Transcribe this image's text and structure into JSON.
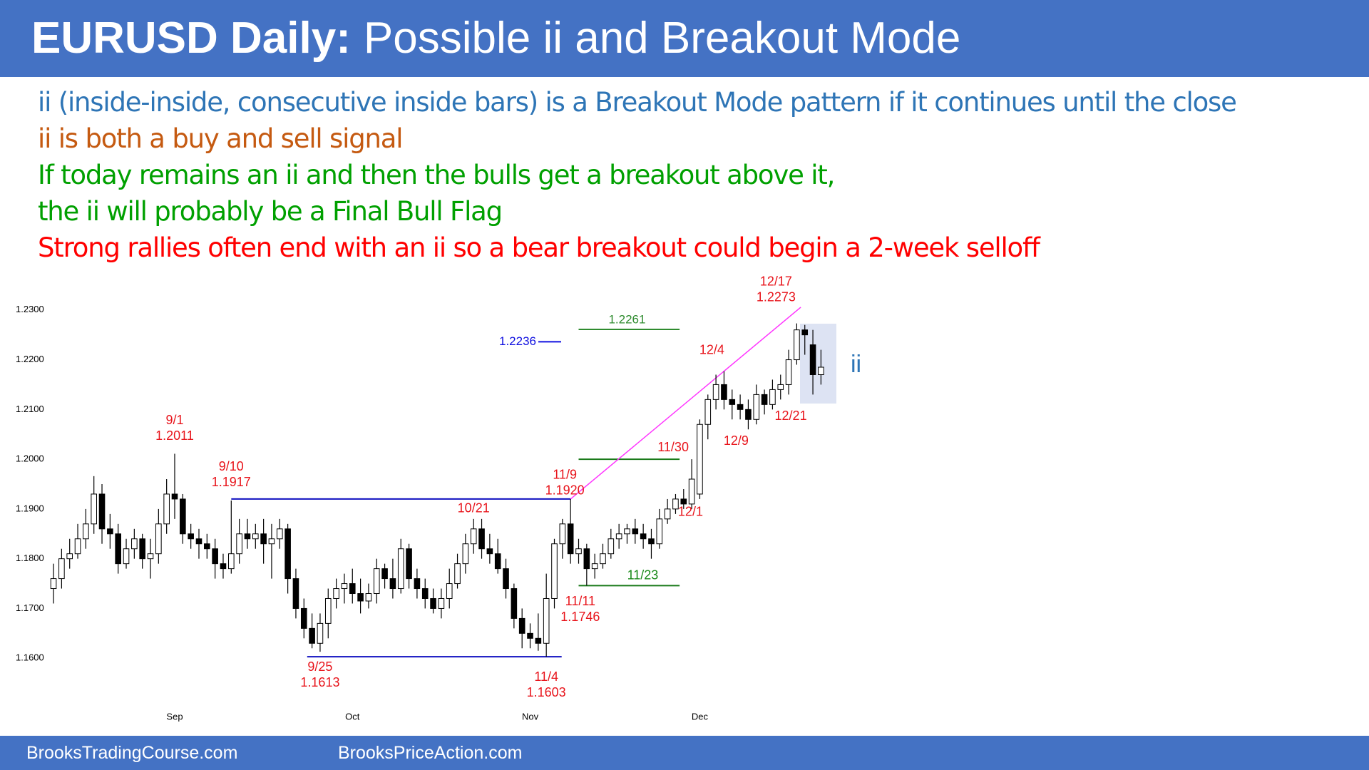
{
  "header": {
    "title_bold": "EURUSD Daily:",
    "title_rest": "Possible ii and Breakout Mode"
  },
  "notes": [
    {
      "text": "ii (inside-inside, consecutive inside bars) is a Breakout Mode pattern if it continues until the close",
      "color": "#2e75b6"
    },
    {
      "text": "ii is both a buy and sell signal",
      "color": "#c55a11"
    },
    {
      "text": "If today remains an ii and then the bulls get a breakout above it,",
      "color": "#00a000"
    },
    {
      "text": "the ii will probably be a Final Bull Flag",
      "color": "#00a000"
    },
    {
      "text": "Strong rallies often end with an ii so a bear breakout could begin a 2-week selloff",
      "color": "#ff0000"
    }
  ],
  "footer": {
    "left": "BrooksTradingCourse.com",
    "right": "BrooksPriceAction.com"
  },
  "chart_data": {
    "type": "candlestick",
    "categories": [
      null,
      null,
      null,
      null,
      null,
      null,
      null,
      null,
      null,
      null,
      null,
      null,
      null,
      null,
      null,
      "Sep",
      null,
      null,
      null,
      null,
      null,
      null,
      null,
      null,
      null,
      null,
      null,
      null,
      null,
      null,
      null,
      null,
      null,
      null,
      null,
      null,
      null,
      "Oct",
      null,
      null,
      null,
      null,
      null,
      null,
      null,
      null,
      null,
      null,
      null,
      null,
      null,
      null,
      null,
      null,
      null,
      null,
      null,
      null,
      null,
      "Nov",
      null,
      null,
      null,
      null,
      null,
      null,
      null,
      null,
      null,
      null,
      null,
      null,
      null,
      null,
      null,
      null,
      null,
      null,
      null,
      null,
      "Dec",
      null,
      null,
      null,
      null,
      null,
      null,
      null,
      null,
      null,
      null,
      null,
      null,
      null,
      null,
      null
    ],
    "open": [
      1.174,
      1.176,
      1.18,
      1.181,
      1.184,
      1.187,
      1.193,
      1.186,
      1.185,
      1.179,
      1.182,
      1.184,
      1.18,
      1.181,
      1.187,
      1.193,
      1.192,
      1.185,
      1.184,
      1.183,
      1.182,
      1.179,
      1.178,
      1.181,
      1.185,
      1.184,
      1.185,
      1.183,
      1.184,
      1.186,
      1.176,
      1.17,
      1.166,
      1.163,
      1.167,
      1.172,
      1.174,
      1.175,
      1.173,
      1.1715,
      1.173,
      1.178,
      1.176,
      1.174,
      1.182,
      1.176,
      1.174,
      1.172,
      1.17,
      1.172,
      1.175,
      1.179,
      1.183,
      1.186,
      1.182,
      1.181,
      1.178,
      1.174,
      1.168,
      1.165,
      1.164,
      1.163,
      1.172,
      1.183,
      1.187,
      1.181,
      1.182,
      1.178,
      1.179,
      1.181,
      1.184,
      1.185,
      1.186,
      1.185,
      1.184,
      1.183,
      1.188,
      1.19,
      1.192,
      1.191,
      1.193,
      1.207,
      1.212,
      1.215,
      1.212,
      1.211,
      1.21,
      1.208,
      1.213,
      1.211,
      1.214,
      1.215,
      1.22,
      1.226,
      1.223,
      1.217
    ],
    "high": [
      1.179,
      1.182,
      1.184,
      1.187,
      1.19,
      1.1966,
      1.195,
      1.189,
      1.187,
      1.184,
      1.186,
      1.185,
      1.184,
      1.19,
      1.196,
      1.2011,
      1.193,
      1.187,
      1.186,
      1.185,
      1.184,
      1.181,
      1.1917,
      1.188,
      1.188,
      1.187,
      1.188,
      1.187,
      1.188,
      1.187,
      1.178,
      1.172,
      1.169,
      1.169,
      1.174,
      1.176,
      1.177,
      1.178,
      1.176,
      1.175,
      1.18,
      1.179,
      1.18,
      1.184,
      1.183,
      1.178,
      1.176,
      1.174,
      1.174,
      1.178,
      1.181,
      1.185,
      1.188,
      1.188,
      1.185,
      1.184,
      1.18,
      1.175,
      1.17,
      1.167,
      1.169,
      1.177,
      1.184,
      1.188,
      1.192,
      1.184,
      1.183,
      1.181,
      1.183,
      1.186,
      1.187,
      1.187,
      1.188,
      1.187,
      1.186,
      1.19,
      1.192,
      1.193,
      1.194,
      1.2,
      1.208,
      1.213,
      1.217,
      1.2177,
      1.214,
      1.213,
      1.212,
      1.215,
      1.214,
      1.216,
      1.217,
      1.222,
      1.2273,
      1.227,
      1.226,
      1.222
    ],
    "low": [
      1.171,
      1.174,
      1.178,
      1.18,
      1.182,
      1.185,
      1.183,
      1.182,
      1.177,
      1.178,
      1.18,
      1.178,
      1.176,
      1.179,
      1.185,
      1.188,
      1.183,
      1.182,
      1.18,
      1.18,
      1.176,
      1.176,
      1.177,
      1.179,
      1.182,
      1.182,
      1.179,
      1.176,
      1.182,
      1.173,
      1.168,
      1.164,
      1.162,
      1.1613,
      1.164,
      1.17,
      1.171,
      1.171,
      1.169,
      1.17,
      1.171,
      1.174,
      1.172,
      1.173,
      1.174,
      1.172,
      1.17,
      1.169,
      1.168,
      1.17,
      1.174,
      1.177,
      1.181,
      1.18,
      1.179,
      1.177,
      1.172,
      1.166,
      1.162,
      1.162,
      1.1615,
      1.1603,
      1.17,
      1.18,
      1.179,
      1.179,
      1.1746,
      1.176,
      1.178,
      1.18,
      1.182,
      1.183,
      1.183,
      1.182,
      1.18,
      1.182,
      1.187,
      1.189,
      1.19,
      1.19,
      1.192,
      1.204,
      1.21,
      1.21,
      1.208,
      1.208,
      1.206,
      1.207,
      1.209,
      1.21,
      1.212,
      1.213,
      1.219,
      1.221,
      1.213,
      1.215
    ],
    "close": [
      1.176,
      1.18,
      1.181,
      1.184,
      1.187,
      1.193,
      1.186,
      1.185,
      1.179,
      1.182,
      1.184,
      1.18,
      1.181,
      1.187,
      1.193,
      1.192,
      1.185,
      1.184,
      1.183,
      1.182,
      1.179,
      1.178,
      1.181,
      1.185,
      1.184,
      1.185,
      1.183,
      1.184,
      1.186,
      1.176,
      1.17,
      1.166,
      1.163,
      1.167,
      1.172,
      1.174,
      1.175,
      1.173,
      1.1715,
      1.173,
      1.178,
      1.176,
      1.174,
      1.182,
      1.176,
      1.174,
      1.172,
      1.17,
      1.172,
      1.175,
      1.179,
      1.183,
      1.186,
      1.182,
      1.181,
      1.178,
      1.174,
      1.168,
      1.165,
      1.164,
      1.163,
      1.172,
      1.183,
      1.187,
      1.181,
      1.182,
      1.178,
      1.179,
      1.181,
      1.184,
      1.185,
      1.186,
      1.185,
      1.184,
      1.183,
      1.188,
      1.19,
      1.192,
      1.191,
      1.196,
      1.207,
      1.212,
      1.215,
      1.212,
      1.211,
      1.21,
      1.208,
      1.213,
      1.211,
      1.214,
      1.215,
      1.22,
      1.226,
      1.225,
      1.217,
      1.2185
    ],
    "ylim": [
      1.15,
      1.24
    ],
    "yticks": [
      {
        "value": 1.23,
        "label": "1.2300"
      },
      {
        "value": 1.22,
        "label": "1.2200"
      },
      {
        "value": 1.21,
        "label": "1.2100"
      },
      {
        "value": 1.2,
        "label": "1.2000"
      },
      {
        "value": 1.19,
        "label": "1.1900"
      },
      {
        "value": 1.18,
        "label": "1.1800"
      },
      {
        "value": 1.17,
        "label": "1.1700"
      },
      {
        "value": 1.16,
        "label": "1.1600"
      }
    ],
    "bull_color": "#ffffff",
    "bear_color": "#000000",
    "annotation_color": "#e8141b",
    "annotations": [
      {
        "date": "9/1",
        "value": 1.2011,
        "label": "1.2011"
      },
      {
        "date": "9/10",
        "value": 1.1917,
        "label": "1.1917"
      },
      {
        "date": "9/25",
        "value": 1.1613,
        "label": "1.1613"
      },
      {
        "date": "10/21"
      },
      {
        "date": "11/4",
        "value": 1.1603,
        "label": "1.1603"
      },
      {
        "date": "11/9",
        "value": 1.192,
        "label": "1.1920"
      },
      {
        "date": "11/11",
        "value": 1.1746,
        "label": "1.1746"
      },
      {
        "date": "11/23",
        "color": "#1a8a1a"
      },
      {
        "date": "11/30"
      },
      {
        "date": "12/1"
      },
      {
        "date": "12/4"
      },
      {
        "date": "12/9"
      },
      {
        "date": "12/21"
      },
      {
        "date": "12/17",
        "value": 1.2273,
        "label": "1.2273"
      }
    ],
    "levels": [
      {
        "value": 1.2261,
        "label": "1.2261",
        "color": "#2e8b2e"
      },
      {
        "value": 1.2236,
        "label": "1.2236",
        "color": "#1010e0"
      }
    ],
    "pattern_label": "ii"
  }
}
